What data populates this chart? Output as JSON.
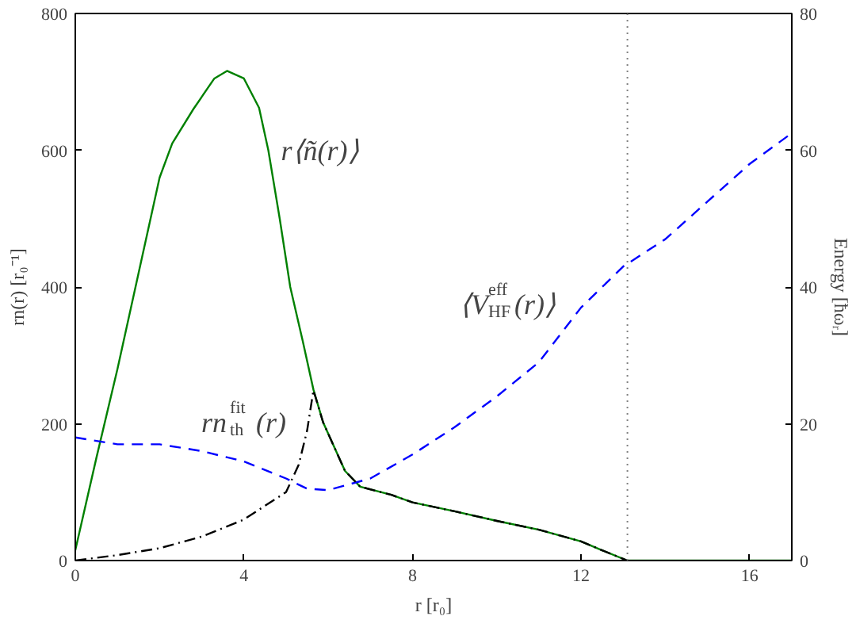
{
  "chart_data": {
    "type": "line",
    "xlabel": "r [r₀]",
    "ylabel": "rn(r) [r₀⁻¹]",
    "y2label": "Energy [ħωᵣ]",
    "xlim": [
      0,
      17
    ],
    "xticks": [
      0,
      4,
      8,
      12,
      16
    ],
    "ylim": [
      0,
      800
    ],
    "yticks": [
      0,
      200,
      400,
      600,
      800
    ],
    "y2lim": [
      0,
      80
    ],
    "y2ticks": [
      0,
      20,
      40,
      60,
      80
    ],
    "grid": false,
    "marker": "none",
    "series": [
      {
        "color": "#008000",
        "line_style": "solid",
        "x": [
          0,
          0.5,
          1,
          1.5,
          2,
          2.3,
          2.8,
          3.3,
          3.6,
          4,
          4.36,
          4.58,
          4.85,
          5.1,
          5.4,
          5.65,
          5.88,
          6.4,
          6.76,
          7.5,
          8,
          9,
          10,
          11,
          12,
          12.5,
          13.1,
          17
        ],
        "values": [
          15,
          150,
          280,
          420,
          560,
          610,
          660,
          705,
          716,
          705,
          662,
          600,
          500,
          400,
          320,
          250,
          202,
          131,
          108,
          96,
          85,
          72,
          58,
          45,
          28,
          15,
          0,
          0
        ]
      },
      {
        "color": "#0000ff",
        "line_style": "dashed",
        "axis": "y2",
        "x": [
          0,
          1,
          2,
          3,
          4,
          5,
          5.5,
          6,
          7,
          8,
          9,
          10,
          11,
          12,
          13,
          14,
          15,
          16,
          17
        ],
        "values": [
          18,
          17,
          17,
          16,
          14.5,
          12,
          10.5,
          10.3,
          12,
          15.5,
          19.5,
          24,
          29,
          37,
          43,
          47,
          52.5,
          58,
          62.5
        ]
      },
      {
        "color": "#000000",
        "line_style": "dashdot",
        "x": [
          0,
          1,
          2,
          3,
          4,
          5,
          5.3,
          5.5,
          5.65,
          5.88,
          6.4,
          6.76,
          7.5,
          8,
          9,
          10,
          11,
          12,
          12.5,
          13.1
        ],
        "values": [
          0,
          8,
          18,
          35,
          60,
          100,
          140,
          190,
          249,
          202,
          131,
          108,
          96,
          85,
          72,
          58,
          45,
          28,
          15,
          0
        ]
      }
    ],
    "ref_lines": [
      {
        "axis": "x",
        "value": 13.1,
        "color": "#808080",
        "line_style": "dotted"
      }
    ],
    "annotations": [
      {
        "text": "r⟨ñ(r)⟩",
        "x": 4.58,
        "y": 600
      },
      {
        "text": "⟨V$^{eff}$$_{HF}$(r)⟩",
        "x": 12,
        "y": 370
      },
      {
        "text": "rn$^{fit}$$_{th}$(r)",
        "x": 5.53,
        "y": 202
      }
    ]
  }
}
